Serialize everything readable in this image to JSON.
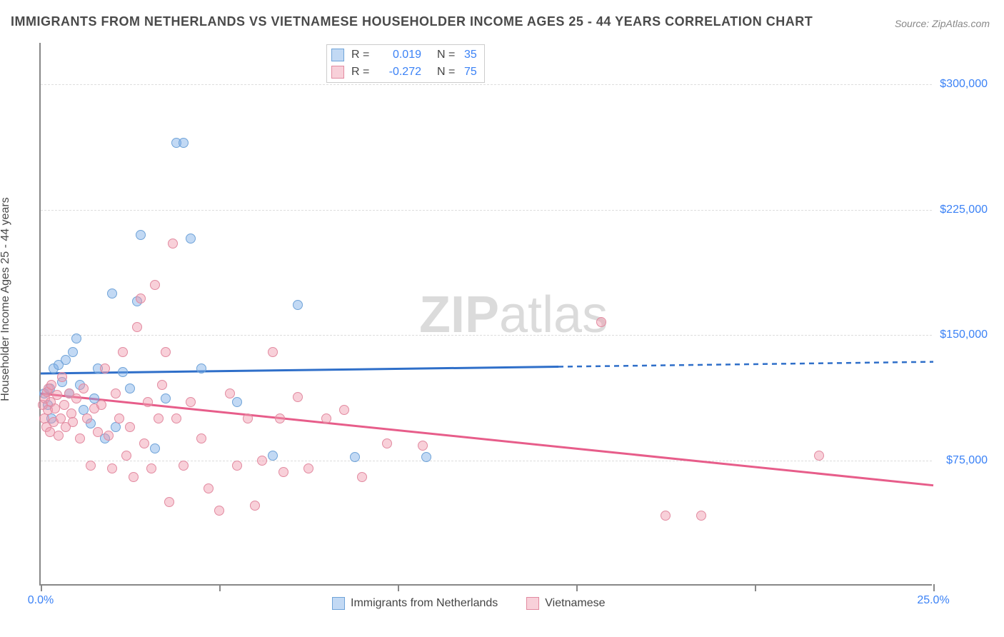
{
  "title": "IMMIGRANTS FROM NETHERLANDS VS VIETNAMESE HOUSEHOLDER INCOME AGES 25 - 44 YEARS CORRELATION CHART",
  "source": "Source: ZipAtlas.com",
  "watermark_zip": "ZIP",
  "watermark_atlas": "atlas",
  "y_axis_label": "Householder Income Ages 25 - 44 years",
  "chart": {
    "type": "scatter",
    "xlim": [
      0,
      25
    ],
    "ylim": [
      0,
      325000
    ],
    "x_ticks": [
      0,
      5,
      10,
      15,
      20,
      25
    ],
    "x_tick_labels": {
      "0": "0.0%",
      "25": "25.0%"
    },
    "y_ticks": [
      75000,
      150000,
      225000,
      300000
    ],
    "y_tick_labels": [
      "$75,000",
      "$150,000",
      "$225,000",
      "$300,000"
    ],
    "grid_color": "#dddddd",
    "axis_color": "#888888",
    "background_color": "#ffffff"
  },
  "series": [
    {
      "name": "Immigrants from Netherlands",
      "fill": "rgba(120,170,230,0.45)",
      "stroke": "#6fa3d8",
      "line_color": "#2f6fc9",
      "r_value": "0.019",
      "n_value": "35",
      "trend": {
        "x1": 0,
        "y1": 127000,
        "x2": 25,
        "y2": 134000,
        "solid_until_x": 14.5
      },
      "points": [
        [
          0.1,
          115000
        ],
        [
          0.2,
          108000
        ],
        [
          0.25,
          118000
        ],
        [
          0.3,
          100000
        ],
        [
          0.35,
          130000
        ],
        [
          0.5,
          132000
        ],
        [
          0.6,
          122000
        ],
        [
          0.7,
          135000
        ],
        [
          0.8,
          115000
        ],
        [
          0.9,
          140000
        ],
        [
          1.0,
          148000
        ],
        [
          1.1,
          120000
        ],
        [
          1.2,
          105000
        ],
        [
          1.4,
          97000
        ],
        [
          1.5,
          112000
        ],
        [
          1.6,
          130000
        ],
        [
          1.8,
          88000
        ],
        [
          2.0,
          175000
        ],
        [
          2.1,
          95000
        ],
        [
          2.3,
          128000
        ],
        [
          2.5,
          118000
        ],
        [
          2.7,
          170000
        ],
        [
          2.8,
          210000
        ],
        [
          3.2,
          82000
        ],
        [
          3.5,
          112000
        ],
        [
          3.8,
          265000
        ],
        [
          4.0,
          265000
        ],
        [
          4.2,
          208000
        ],
        [
          4.5,
          130000
        ],
        [
          5.5,
          110000
        ],
        [
          6.5,
          78000
        ],
        [
          7.2,
          168000
        ],
        [
          8.8,
          77000
        ],
        [
          10.8,
          77000
        ]
      ]
    },
    {
      "name": "Vietnamese",
      "fill": "rgba(240,150,170,0.45)",
      "stroke": "#e28aa0",
      "line_color": "#e75d8a",
      "r_value": "-0.272",
      "n_value": "75",
      "trend": {
        "x1": 0,
        "y1": 115000,
        "x2": 25,
        "y2": 60000,
        "solid_until_x": 25
      },
      "points": [
        [
          0.05,
          108000
        ],
        [
          0.1,
          100000
        ],
        [
          0.12,
          112000
        ],
        [
          0.15,
          95000
        ],
        [
          0.18,
          116000
        ],
        [
          0.2,
          105000
        ],
        [
          0.22,
          118000
        ],
        [
          0.25,
          92000
        ],
        [
          0.28,
          110000
        ],
        [
          0.3,
          120000
        ],
        [
          0.35,
          98000
        ],
        [
          0.4,
          106000
        ],
        [
          0.45,
          114000
        ],
        [
          0.5,
          90000
        ],
        [
          0.55,
          100000
        ],
        [
          0.6,
          125000
        ],
        [
          0.65,
          108000
        ],
        [
          0.7,
          95000
        ],
        [
          0.8,
          115000
        ],
        [
          0.85,
          103000
        ],
        [
          0.9,
          98000
        ],
        [
          1.0,
          112000
        ],
        [
          1.1,
          88000
        ],
        [
          1.2,
          118000
        ],
        [
          1.3,
          100000
        ],
        [
          1.4,
          72000
        ],
        [
          1.5,
          106000
        ],
        [
          1.6,
          92000
        ],
        [
          1.7,
          108000
        ],
        [
          1.8,
          130000
        ],
        [
          1.9,
          90000
        ],
        [
          2.0,
          70000
        ],
        [
          2.1,
          115000
        ],
        [
          2.2,
          100000
        ],
        [
          2.3,
          140000
        ],
        [
          2.4,
          78000
        ],
        [
          2.5,
          95000
        ],
        [
          2.6,
          65000
        ],
        [
          2.7,
          155000
        ],
        [
          2.8,
          172000
        ],
        [
          2.9,
          85000
        ],
        [
          3.0,
          110000
        ],
        [
          3.1,
          70000
        ],
        [
          3.2,
          180000
        ],
        [
          3.3,
          100000
        ],
        [
          3.4,
          120000
        ],
        [
          3.5,
          140000
        ],
        [
          3.6,
          50000
        ],
        [
          3.7,
          205000
        ],
        [
          3.8,
          100000
        ],
        [
          4.0,
          72000
        ],
        [
          4.2,
          110000
        ],
        [
          4.5,
          88000
        ],
        [
          4.7,
          58000
        ],
        [
          5.0,
          45000
        ],
        [
          5.3,
          115000
        ],
        [
          5.5,
          72000
        ],
        [
          5.8,
          100000
        ],
        [
          6.0,
          48000
        ],
        [
          6.2,
          75000
        ],
        [
          6.5,
          140000
        ],
        [
          6.7,
          100000
        ],
        [
          6.8,
          68000
        ],
        [
          7.2,
          113000
        ],
        [
          7.5,
          70000
        ],
        [
          8.0,
          100000
        ],
        [
          8.5,
          105000
        ],
        [
          9.0,
          65000
        ],
        [
          9.7,
          85000
        ],
        [
          10.7,
          84000
        ],
        [
          15.7,
          158000
        ],
        [
          17.5,
          42000
        ],
        [
          18.5,
          42000
        ],
        [
          21.8,
          78000
        ]
      ]
    }
  ],
  "legend_labels": {
    "r_label": "R =",
    "n_label": "N ="
  }
}
